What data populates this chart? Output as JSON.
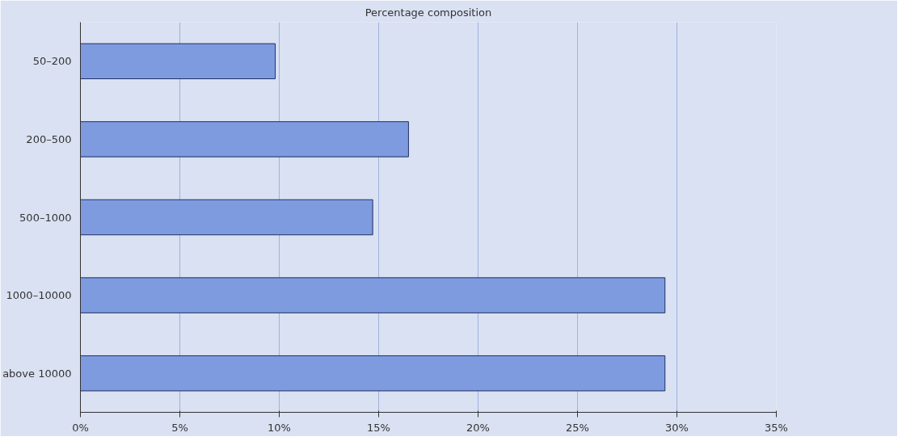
{
  "chart_data": {
    "type": "bar",
    "orientation": "horizontal",
    "title": "Percentage composition",
    "categories": [
      "50–200",
      "200–500",
      "500–1000",
      "1000–10000",
      "above 10000"
    ],
    "values": [
      9.8,
      16.5,
      14.7,
      29.4,
      29.4
    ],
    "color": "#7f9be0",
    "xlim": [
      0,
      35
    ],
    "xticks": [
      {
        "value": 0,
        "label": "0%"
      },
      {
        "value": 5,
        "label": "5%"
      },
      {
        "value": 10,
        "label": "10%"
      },
      {
        "value": 15,
        "label": "15%"
      },
      {
        "value": 20,
        "label": "20%"
      },
      {
        "value": 25,
        "label": "25%"
      },
      {
        "value": 30,
        "label": "30%"
      },
      {
        "value": 35,
        "label": "35%"
      }
    ],
    "grid": "x"
  }
}
